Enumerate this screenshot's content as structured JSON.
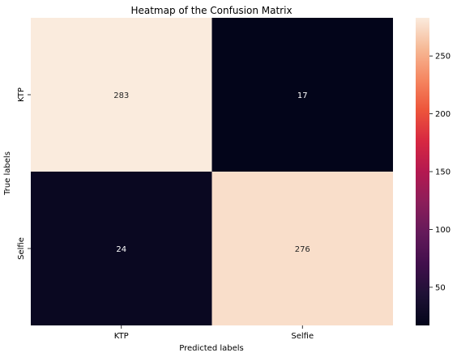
{
  "chart_data": {
    "type": "heatmap",
    "title": "Heatmap of the Confusion Matrix",
    "xlabel": "Predicted labels",
    "ylabel": "True labels",
    "x_categories": [
      "KTP",
      "Selfie"
    ],
    "y_categories": [
      "KTP",
      "Selfie"
    ],
    "values": [
      [
        283,
        17
      ],
      [
        24,
        276
      ]
    ],
    "colorbar": {
      "min": 17,
      "max": 283,
      "ticks": [
        50,
        100,
        150,
        200,
        250
      ],
      "colormap": "rocket"
    },
    "annot_colors": {
      "light_cell_text": "#262626",
      "dark_cell_text": "#ffffff"
    }
  }
}
